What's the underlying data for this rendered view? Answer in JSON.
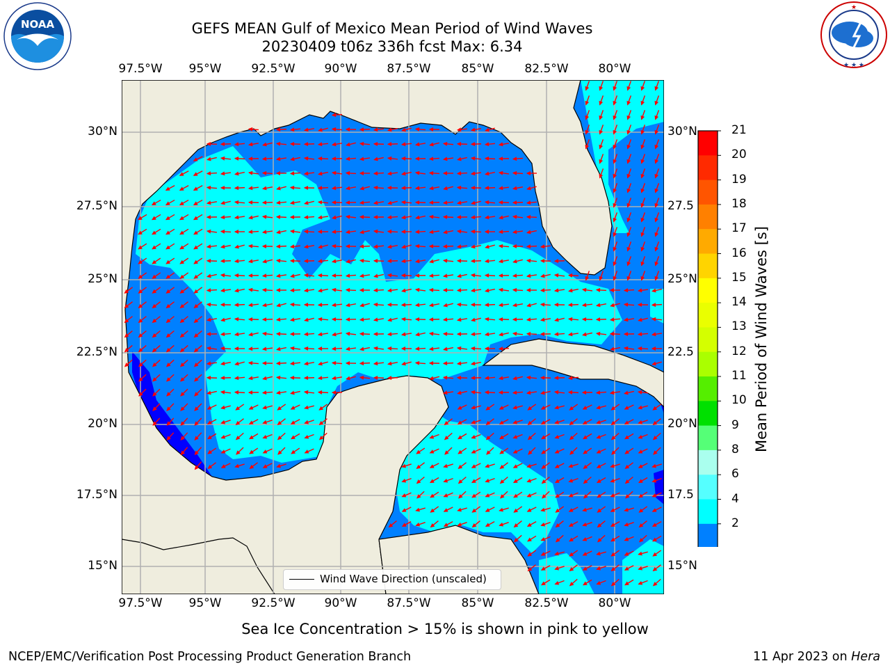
{
  "title": {
    "line1": "GEFS MEAN Gulf of Mexico Mean Period of Wind Waves",
    "line2": "20230409 t06z 336h fcst   Max: 6.34"
  },
  "logos": {
    "left": "NOAA",
    "left_ring": "NATIONAL OCEANIC AND ATMOSPHERIC ADMINISTRATION · U.S. DEPARTMENT OF COMMERCE",
    "right_ring": "NATIONAL WEATHER SERVICE"
  },
  "axes": {
    "lon_labels": [
      "97.5°W",
      "95°W",
      "92.5°W",
      "90°W",
      "87.5°W",
      "85°W",
      "82.5°W",
      "80°W"
    ],
    "lat_labels_left": [
      "30°N",
      "27.5°N",
      "25°N",
      "22.5°N",
      "20°N",
      "17.5°N",
      "15°N"
    ],
    "lat_labels_right": [
      "30°N",
      "27.5",
      "25°N",
      "22.5",
      "20°N",
      "17.5",
      "15°N"
    ]
  },
  "colorbar": {
    "label": "Mean Period of Wind Waves [s]",
    "ticks": [
      "21",
      "20",
      "19",
      "18",
      "17",
      "16",
      "15",
      "14",
      "13",
      "12",
      "11",
      "10",
      "9",
      "8",
      "6",
      "4",
      "2"
    ],
    "colors": [
      "#ff0000",
      "#ff2a00",
      "#ff5500",
      "#ff8000",
      "#ffaa00",
      "#ffd400",
      "#ffff00",
      "#eaff00",
      "#d4ff00",
      "#aaff00",
      "#55ee00",
      "#00e000",
      "#55ff77",
      "#aaffee",
      "#55ffff",
      "#00ffff",
      "#0080ff"
    ],
    "under_color": "#0000ff"
  },
  "legend": {
    "label": "Wind Wave Direction (unscaled)"
  },
  "caption": "Sea Ice Concentration > 15% is shown in pink to yellow",
  "footer": {
    "left": "NCEP/EMC/Verification Post Processing Product Generation Branch",
    "right_date": "11 Apr 2023 on ",
    "right_machine": "Hera"
  },
  "map_colors": {
    "land": "#efedde",
    "cyan": "#00ffff",
    "blue": "#0080ff",
    "deep": "#0000ff",
    "arrow": "#ff0000",
    "grid": "#b0b0b0"
  }
}
